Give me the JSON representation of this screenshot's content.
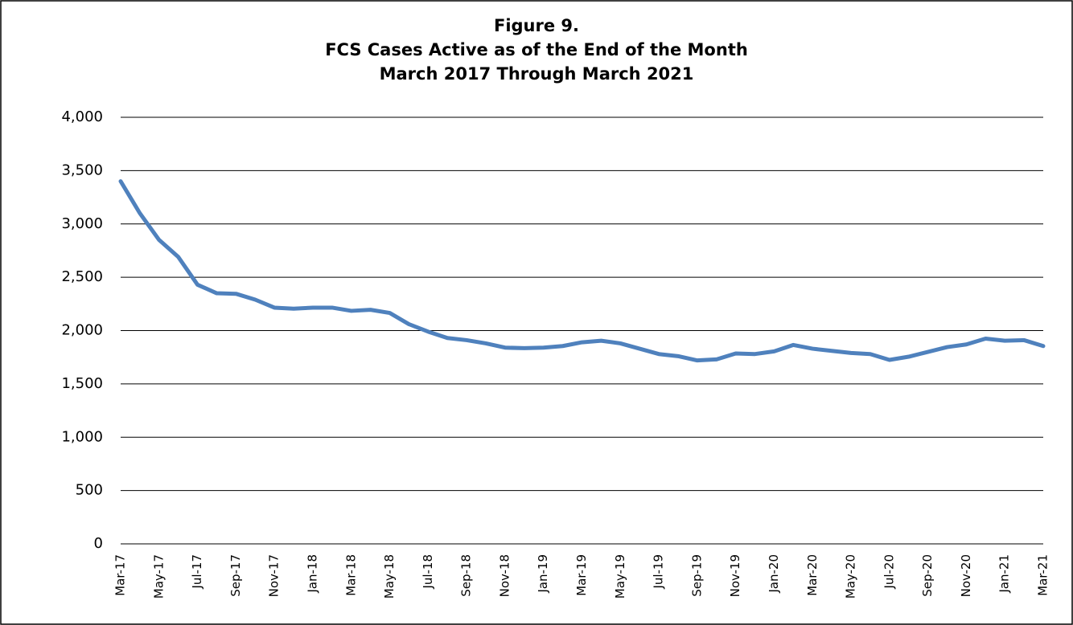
{
  "chart_data": {
    "type": "line",
    "title": [
      "Figure 9.",
      "FCS Cases Active as of the End of the Month",
      "March 2017 Through March 2021"
    ],
    "categories": [
      "Mar-17",
      null,
      "May-17",
      null,
      "Jul-17",
      null,
      "Sep-17",
      null,
      "Nov-17",
      null,
      "Jan-18",
      null,
      "Mar-18",
      null,
      "May-18",
      null,
      "Jul-18",
      null,
      "Sep-18",
      null,
      "Nov-18",
      null,
      "Jan-19",
      null,
      "Mar-19",
      null,
      "May-19",
      null,
      "Jul-19",
      null,
      "Sep-19",
      null,
      "Nov-19",
      null,
      "Jan-20",
      null,
      "Mar-20",
      null,
      "May-20",
      null,
      "Jul-20",
      null,
      "Sep-20",
      null,
      "Nov-20",
      null,
      "Jan-21",
      null,
      "Mar-21"
    ],
    "values": [
      3400,
      3100,
      2850,
      2690,
      2430,
      2350,
      2345,
      2290,
      2215,
      2205,
      2215,
      2215,
      2185,
      2195,
      2165,
      2060,
      1990,
      1930,
      1910,
      1880,
      1840,
      1835,
      1840,
      1855,
      1890,
      1905,
      1880,
      1830,
      1780,
      1760,
      1720,
      1730,
      1785,
      1780,
      1805,
      1865,
      1830,
      1810,
      1790,
      1780,
      1725,
      1755,
      1800,
      1845,
      1870,
      1925,
      1905,
      1910,
      1855
    ],
    "color": "#4f81bd",
    "ylim": [
      0,
      4000
    ],
    "yticks": [
      0,
      500,
      {
        "value": 1000,
        "label": "1,000"
      },
      {
        "value": 1500,
        "label": "1,500"
      },
      {
        "value": 2000,
        "label": "2,000"
      },
      {
        "value": 2500,
        "label": "2,500"
      },
      {
        "value": 3000,
        "label": "3,000"
      },
      {
        "value": 3500,
        "label": "3,500"
      },
      {
        "value": 4000,
        "label": "4,000"
      }
    ],
    "grid": true
  }
}
